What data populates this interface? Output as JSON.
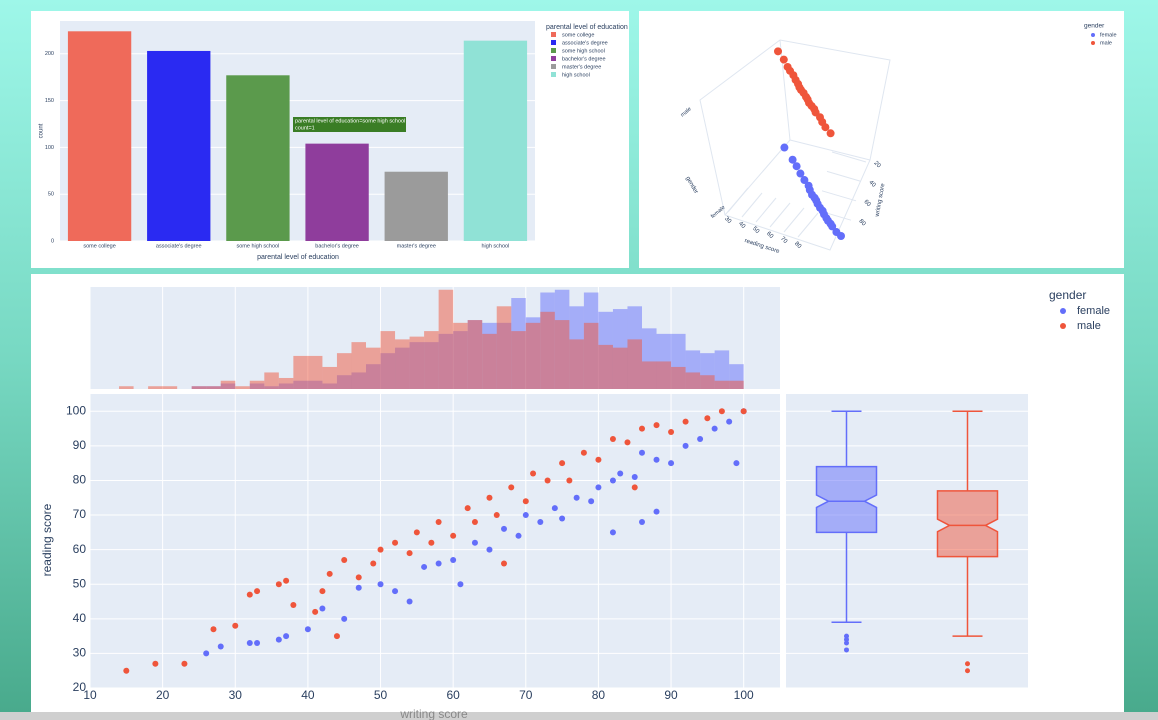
{
  "chart_data": [
    {
      "type": "bar",
      "categories": [
        "some college",
        "associate's degree",
        "some high school",
        "bachelor's degree",
        "master's degree",
        "high school"
      ],
      "values": [
        224,
        203,
        177,
        104,
        74,
        214
      ],
      "colors": [
        "#ef6a5a",
        "#2a2af2",
        "#5b9a4c",
        "#8f3d9c",
        "#9b9b9b",
        "#90e2d6"
      ],
      "xlabel": "parental level of education",
      "ylabel": "count",
      "legend_title": "parental level of education",
      "ylim": [
        0,
        235
      ],
      "yticks": [
        0,
        50,
        100,
        150,
        200
      ],
      "tooltip": [
        "parental level of education=some high school",
        "count=1"
      ]
    },
    {
      "type": "scatter3d",
      "legend_title": "gender",
      "xlabel": "reading score",
      "ylabel": "writing score",
      "zlabel": "gender",
      "zcategories": [
        "female",
        "male"
      ],
      "xticks": [
        30,
        40,
        50,
        60,
        70,
        80
      ],
      "yticks": [
        20,
        40,
        60,
        80
      ],
      "series": [
        {
          "name": "female",
          "color": "#636efa",
          "x": [
            30,
            40,
            45,
            50,
            55,
            60,
            62,
            65,
            68,
            70,
            72,
            75,
            78,
            80,
            83,
            85,
            88,
            90,
            95,
            100
          ],
          "y": [
            33,
            42,
            47,
            53,
            58,
            62,
            66,
            70,
            72,
            74,
            77,
            80,
            82,
            85,
            88,
            90,
            92,
            94,
            98,
            100
          ]
        },
        {
          "name": "male",
          "color": "#ef553b",
          "x": [
            33,
            40,
            45,
            48,
            52,
            55,
            58,
            60,
            62,
            65,
            68,
            70,
            72,
            75,
            78,
            80,
            85,
            88,
            92,
            98
          ],
          "y": [
            30,
            36,
            42,
            45,
            48,
            52,
            55,
            58,
            60,
            62,
            65,
            67,
            70,
            72,
            74,
            77,
            80,
            84,
            88,
            92
          ]
        }
      ]
    },
    {
      "type": "scatter_marginal",
      "xlabel": "writing score",
      "ylabel": "reading score",
      "legend_title": "gender",
      "xlim": [
        10,
        105
      ],
      "ylim": [
        20,
        105
      ],
      "xticks": [
        10,
        20,
        30,
        40,
        50,
        60,
        70,
        80,
        90,
        100
      ],
      "yticks": [
        20,
        30,
        40,
        50,
        60,
        70,
        80,
        90,
        100
      ],
      "bins": [
        14,
        16,
        18,
        20,
        22,
        24,
        26,
        28,
        30,
        32,
        34,
        36,
        38,
        40,
        42,
        44,
        46,
        48,
        50,
        52,
        54,
        56,
        58,
        60,
        62,
        64,
        66,
        68,
        70,
        72,
        74,
        76,
        78,
        80,
        82,
        84,
        86,
        88,
        90,
        92,
        94,
        96,
        98,
        100
      ],
      "hist_ylim": [
        0,
        37
      ],
      "series": [
        {
          "name": "female",
          "color": "#636efa",
          "x": [
            26,
            28,
            32,
            33,
            36,
            37,
            40,
            42,
            45,
            47,
            50,
            52,
            54,
            56,
            58,
            60,
            61,
            63,
            65,
            67,
            69,
            70,
            72,
            74,
            75,
            77,
            79,
            80,
            82,
            83,
            85,
            86,
            88,
            90,
            92,
            94,
            96,
            98,
            99,
            100,
            86,
            82,
            88
          ],
          "y": [
            30,
            32,
            33,
            33,
            34,
            35,
            37,
            43,
            40,
            49,
            50,
            48,
            45,
            55,
            56,
            57,
            50,
            62,
            60,
            66,
            64,
            70,
            68,
            72,
            69,
            75,
            74,
            78,
            80,
            82,
            81,
            88,
            86,
            85,
            90,
            92,
            95,
            97,
            85,
            100,
            68,
            65,
            71
          ],
          "hist": [
            0,
            0,
            0,
            0,
            0,
            1,
            1,
            2,
            0,
            2,
            1,
            2,
            3,
            3,
            2,
            5,
            6,
            9,
            13,
            15,
            17,
            17,
            20,
            21,
            25,
            24,
            24,
            33,
            26,
            35,
            36,
            30,
            35,
            28,
            29,
            30,
            22,
            20,
            20,
            14,
            13,
            14,
            9
          ],
          "box": {
            "q1": 65,
            "median": 74,
            "q3": 84,
            "lowerfence": 39,
            "upperfence": 100,
            "outliers": [
              35,
              34,
              33,
              31
            ]
          }
        },
        {
          "name": "male",
          "color": "#ef553b",
          "x": [
            15,
            19,
            23,
            27,
            30,
            32,
            33,
            36,
            37,
            38,
            41,
            42,
            43,
            44,
            45,
            47,
            49,
            50,
            52,
            54,
            55,
            57,
            58,
            60,
            62,
            63,
            65,
            66,
            68,
            70,
            71,
            73,
            75,
            76,
            78,
            80,
            82,
            84,
            86,
            88,
            90,
            92,
            95,
            97,
            100,
            85,
            67
          ],
          "y": [
            25,
            27,
            27,
            37,
            38,
            47,
            48,
            50,
            51,
            44,
            42,
            48,
            53,
            35,
            57,
            52,
            56,
            60,
            62,
            59,
            65,
            62,
            68,
            64,
            72,
            68,
            75,
            70,
            78,
            74,
            82,
            80,
            85,
            80,
            88,
            86,
            92,
            91,
            95,
            96,
            94,
            97,
            98,
            100,
            100,
            78,
            56
          ],
          "hist": [
            1,
            0,
            1,
            1,
            0,
            1,
            1,
            3,
            1,
            3,
            6,
            4,
            12,
            12,
            8,
            13,
            17,
            15,
            21,
            18,
            19,
            21,
            36,
            24,
            25,
            20,
            30,
            21,
            24,
            28,
            25,
            18,
            24,
            16,
            15,
            18,
            10,
            10,
            8,
            6,
            5,
            3,
            3
          ],
          "box": {
            "q1": 58,
            "median": 67,
            "q3": 77,
            "lowerfence": 35,
            "upperfence": 100,
            "outliers": [
              27,
              25
            ]
          }
        }
      ]
    }
  ]
}
